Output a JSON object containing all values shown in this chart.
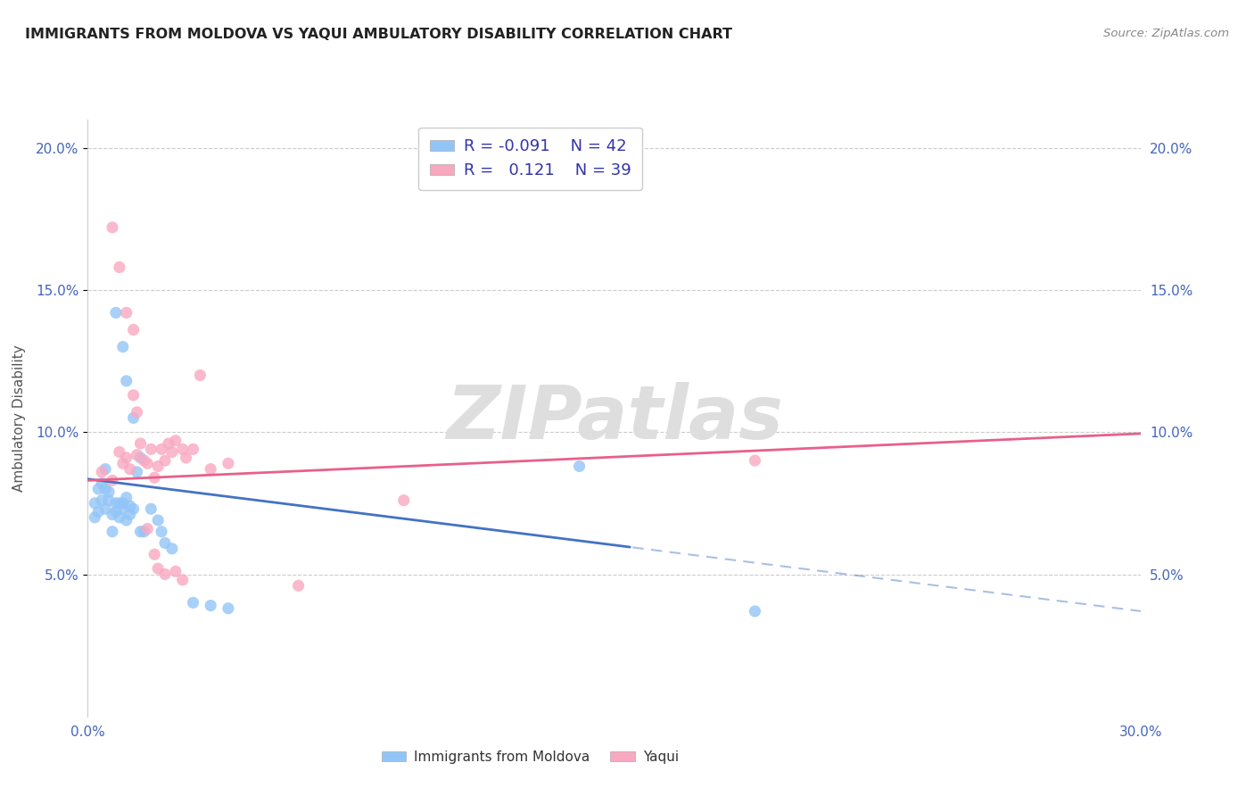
{
  "title": "IMMIGRANTS FROM MOLDOVA VS YAQUI AMBULATORY DISABILITY CORRELATION CHART",
  "source": "Source: ZipAtlas.com",
  "ylabel": "Ambulatory Disability",
  "xlim": [
    0.0,
    0.3
  ],
  "ylim": [
    0.0,
    0.21
  ],
  "xticks": [
    0.0,
    0.05,
    0.1,
    0.15,
    0.2,
    0.25,
    0.3
  ],
  "xtick_labels": [
    "0.0%",
    "",
    "",
    "",
    "",
    "",
    "30.0%"
  ],
  "yticks": [
    0.05,
    0.1,
    0.15,
    0.2
  ],
  "ytick_labels": [
    "5.0%",
    "10.0%",
    "15.0%",
    "20.0%"
  ],
  "legend1_R": "-0.091",
  "legend1_N": "42",
  "legend2_R": "0.121",
  "legend2_N": "39",
  "blue_color": "#92C5F7",
  "pink_color": "#F9A8C0",
  "line_blue": "#4472C4",
  "line_pink": "#E8608A",
  "watermark": "ZIPatlas",
  "blue_x": [
    0.002,
    0.002,
    0.003,
    0.003,
    0.004,
    0.004,
    0.005,
    0.005,
    0.005,
    0.006,
    0.006,
    0.007,
    0.007,
    0.008,
    0.008,
    0.009,
    0.009,
    0.01,
    0.01,
    0.011,
    0.011,
    0.012,
    0.012,
    0.013,
    0.014,
    0.015,
    0.015,
    0.016,
    0.018,
    0.02,
    0.021,
    0.022,
    0.024,
    0.03,
    0.035,
    0.04,
    0.008,
    0.01,
    0.011,
    0.013,
    0.14,
    0.19
  ],
  "blue_y": [
    0.075,
    0.07,
    0.072,
    0.08,
    0.076,
    0.082,
    0.08,
    0.087,
    0.073,
    0.079,
    0.076,
    0.071,
    0.065,
    0.075,
    0.072,
    0.07,
    0.075,
    0.073,
    0.075,
    0.069,
    0.077,
    0.074,
    0.071,
    0.073,
    0.086,
    0.091,
    0.065,
    0.065,
    0.073,
    0.069,
    0.065,
    0.061,
    0.059,
    0.04,
    0.039,
    0.038,
    0.142,
    0.13,
    0.118,
    0.105,
    0.088,
    0.037
  ],
  "pink_x": [
    0.004,
    0.007,
    0.009,
    0.01,
    0.011,
    0.012,
    0.013,
    0.014,
    0.015,
    0.016,
    0.017,
    0.018,
    0.019,
    0.02,
    0.021,
    0.022,
    0.023,
    0.024,
    0.025,
    0.027,
    0.028,
    0.03,
    0.032,
    0.035,
    0.04,
    0.06,
    0.007,
    0.009,
    0.011,
    0.013,
    0.014,
    0.017,
    0.019,
    0.02,
    0.022,
    0.025,
    0.027,
    0.19,
    0.09
  ],
  "pink_y": [
    0.086,
    0.083,
    0.093,
    0.089,
    0.091,
    0.087,
    0.113,
    0.092,
    0.096,
    0.09,
    0.089,
    0.094,
    0.084,
    0.088,
    0.094,
    0.09,
    0.096,
    0.093,
    0.097,
    0.094,
    0.091,
    0.094,
    0.12,
    0.087,
    0.089,
    0.046,
    0.172,
    0.158,
    0.142,
    0.136,
    0.107,
    0.066,
    0.057,
    0.052,
    0.05,
    0.051,
    0.048,
    0.09,
    0.076
  ],
  "blue_line_intercept": 0.0835,
  "blue_line_slope": -0.155,
  "pink_line_intercept": 0.083,
  "pink_line_slope": 0.055
}
